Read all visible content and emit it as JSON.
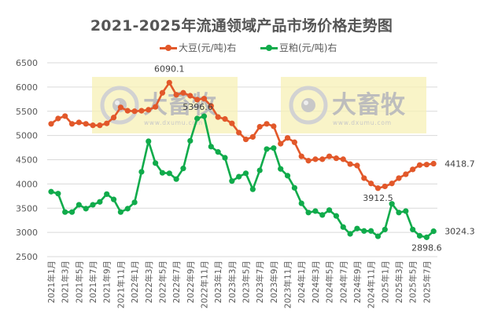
{
  "chart": {
    "title": "2021-2025年流通领域产品市场价格走势图",
    "watermark": {
      "brand": "大畜牧",
      "url": "www.dxumu.com"
    },
    "legend": [
      {
        "label": "大豆(元/吨)右",
        "color": "#E2582A"
      },
      {
        "label": "豆粕(元/吨)右",
        "color": "#10AB4B"
      }
    ],
    "annotations": {
      "soy_max": "6090.1",
      "soy_min": "3912.5",
      "soy_last": "4418.7",
      "meal_max": "5396.6",
      "meal_min": "2898.6",
      "meal_last": "3024.3"
    }
  },
  "chart_data": {
    "type": "line",
    "title": "2021-2025年流通领域产品市场价格走势图",
    "xlabel": "",
    "ylabel": "",
    "ylim": [
      2500,
      6500
    ],
    "yticks": [
      6500,
      6000,
      5500,
      5000,
      4500,
      4000,
      3500,
      3000,
      2500
    ],
    "grid": true,
    "legend_position": "top",
    "x_tick_labels": [
      "2021年1月",
      "2021年3月",
      "2021年5月",
      "2021年7月",
      "2021年9月",
      "2021年11月",
      "2022年1月",
      "2022年3月",
      "2022年5月",
      "2022年7月",
      "2022年9月",
      "2022年11月",
      "2023年1月",
      "2023年3月",
      "2023年5月",
      "2023年7月",
      "2023年9月",
      "2023年11月",
      "2024年1月",
      "2024年3月",
      "2024年5月",
      "2024年7月",
      "2024年9月",
      "2024年11月",
      "2025年1月",
      "2025年3月",
      "2025年5月",
      "2025年7月"
    ],
    "x": [
      "2021-01",
      "2021-02",
      "2021-03",
      "2021-04",
      "2021-05",
      "2021-06",
      "2021-07",
      "2021-08",
      "2021-09",
      "2021-10",
      "2021-11",
      "2021-12",
      "2022-01",
      "2022-02",
      "2022-03",
      "2022-04",
      "2022-05",
      "2022-06",
      "2022-07",
      "2022-08",
      "2022-09",
      "2022-10",
      "2022-11",
      "2022-12",
      "2023-01",
      "2023-02",
      "2023-03",
      "2023-04",
      "2023-05",
      "2023-06",
      "2023-07",
      "2023-08",
      "2023-09",
      "2023-10",
      "2023-11",
      "2023-12",
      "2024-01",
      "2024-02",
      "2024-03",
      "2024-04",
      "2024-05",
      "2024-06",
      "2024-07",
      "2024-08",
      "2024-09",
      "2024-10",
      "2024-11",
      "2024-12",
      "2025-01",
      "2025-02",
      "2025-03",
      "2025-04",
      "2025-05",
      "2025-06",
      "2025-07",
      "2025-08"
    ],
    "series": [
      {
        "name": "大豆(元/吨)右",
        "color": "#E2582A",
        "values": [
          5240,
          5350,
          5400,
          5240,
          5270,
          5240,
          5210,
          5210,
          5250,
          5370,
          5580,
          5510,
          5500,
          5510,
          5530,
          5590,
          5880,
          6090.1,
          5840,
          5880,
          5820,
          5740,
          5760,
          5610,
          5380,
          5340,
          5250,
          5060,
          4920,
          4970,
          5180,
          5240,
          5190,
          4830,
          4950,
          4860,
          4570,
          4480,
          4510,
          4510,
          4570,
          4530,
          4510,
          4410,
          4380,
          4120,
          4010,
          3912.5,
          3950,
          4010,
          4120,
          4200,
          4300,
          4390,
          4400,
          4418.7
        ]
      },
      {
        "name": "豆粕(元/吨)右",
        "color": "#10AB4B",
        "values": [
          3840,
          3800,
          3420,
          3420,
          3570,
          3490,
          3570,
          3630,
          3790,
          3680,
          3420,
          3490,
          3620,
          4250,
          4880,
          4430,
          4230,
          4220,
          4100,
          4320,
          4890,
          5350,
          5396.6,
          4770,
          4660,
          4540,
          4060,
          4150,
          4220,
          3890,
          4280,
          4720,
          4740,
          4310,
          4170,
          3920,
          3600,
          3410,
          3440,
          3360,
          3460,
          3340,
          3110,
          2970,
          3080,
          3030,
          3030,
          2920,
          3060,
          3590,
          3410,
          3440,
          3060,
          2930,
          2898.6,
          3024.3
        ]
      }
    ],
    "data_labels": [
      {
        "series": 0,
        "index": 17,
        "text": "6090.1"
      },
      {
        "series": 0,
        "index": 47,
        "text": "3912.5"
      },
      {
        "series": 0,
        "index": 55,
        "text": "4418.7"
      },
      {
        "series": 1,
        "index": 22,
        "text": "5396.6"
      },
      {
        "series": 1,
        "index": 54,
        "text": "2898.6"
      },
      {
        "series": 1,
        "index": 55,
        "text": "3024.3"
      }
    ]
  }
}
